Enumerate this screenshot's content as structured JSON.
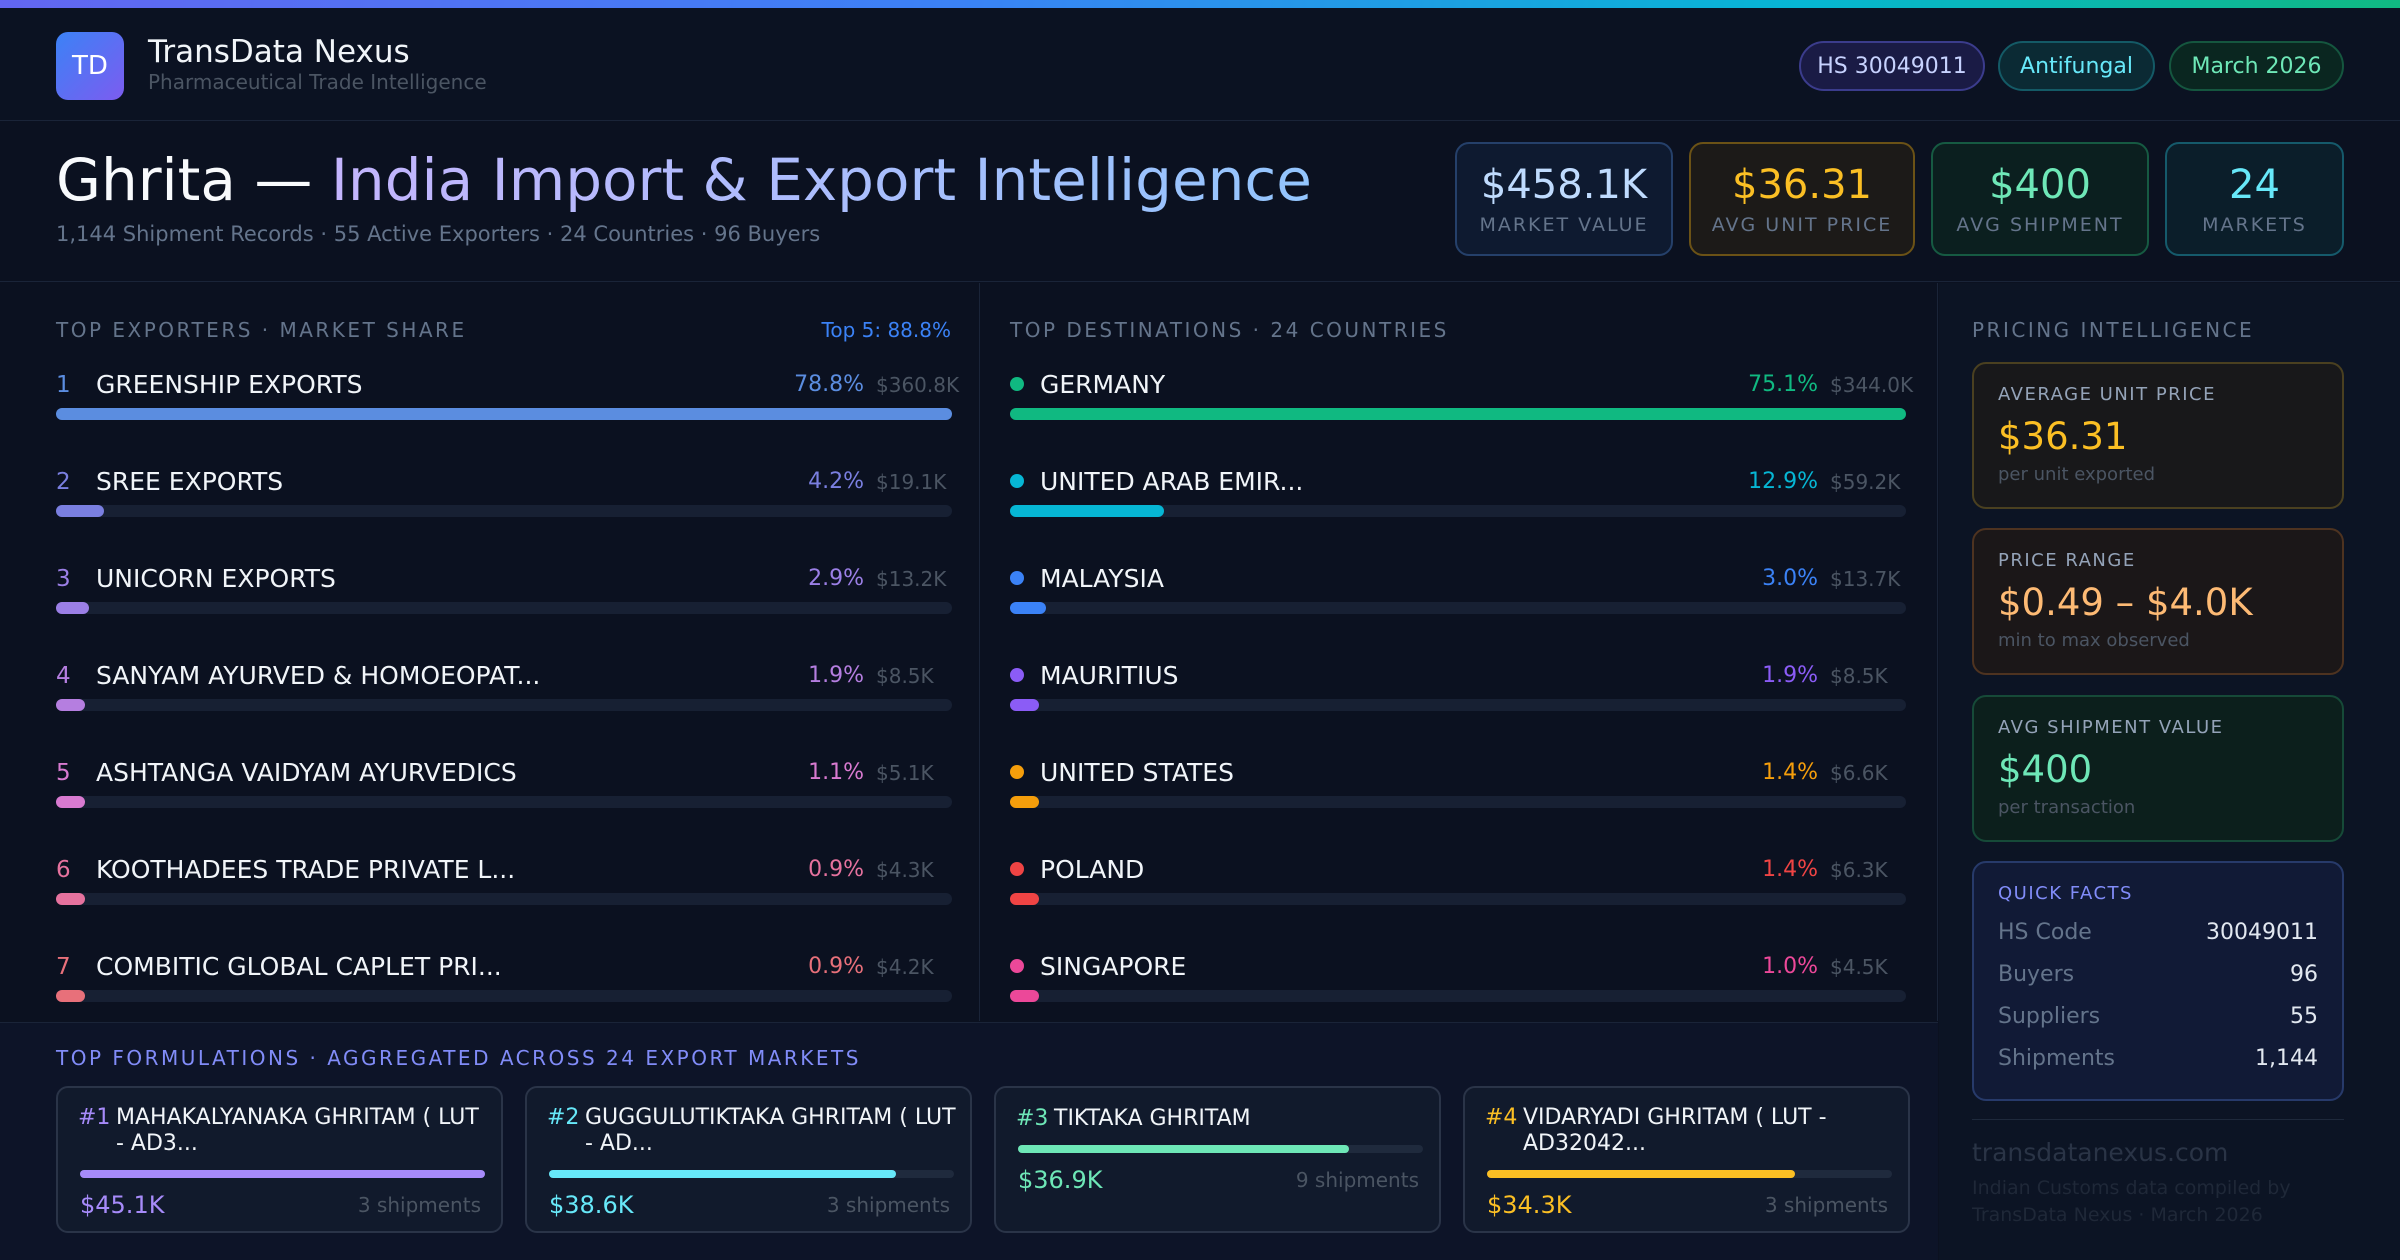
{
  "header": {
    "logo_text": "TD",
    "brand_title": "TransData Nexus",
    "brand_subtitle": "Pharmaceutical Trade Intelligence",
    "pills": [
      "HS 30049011",
      "Antifungal",
      "March 2026"
    ]
  },
  "title": {
    "product": "Ghrita",
    "separator": " — ",
    "rest": "India Import & Export Intelligence",
    "subtitle": "1,144 Shipment Records · 55 Active Exporters · 24 Countries · 96 Buyers"
  },
  "kpis": [
    {
      "value": "$458.1K",
      "label": "MARKET VALUE"
    },
    {
      "value": "$36.31",
      "label": "AVG UNIT PRICE"
    },
    {
      "value": "$400",
      "label": "AVG SHIPMENT"
    },
    {
      "value": "24",
      "label": "MARKETS"
    }
  ],
  "exporters": {
    "label": "TOP EXPORTERS · MARKET SHARE",
    "top5": "Top 5: 88.8%",
    "items": [
      {
        "rank": "1",
        "name": "GREENSHIP EXPORTS",
        "pct": "78.8%",
        "amount": "$360.8K",
        "share": 78.8,
        "color": "#5b8de0"
      },
      {
        "rank": "2",
        "name": "SREE EXPORTS",
        "pct": "4.2%",
        "amount": "$19.1K",
        "share": 4.2,
        "color": "#7a7fe0"
      },
      {
        "rank": "3",
        "name": "UNICORN EXPORTS",
        "pct": "2.9%",
        "amount": "$13.2K",
        "share": 2.9,
        "color": "#9b7fe6"
      },
      {
        "rank": "4",
        "name": "SANYAM AYURVED & HOMOEOPAT...",
        "pct": "1.9%",
        "amount": "$8.5K",
        "share": 1.9,
        "color": "#b57ee0"
      },
      {
        "rank": "5",
        "name": "ASHTANGA VAIDYAM AYURVEDICS",
        "pct": "1.1%",
        "amount": "$5.1K",
        "share": 1.1,
        "color": "#d87ad0"
      },
      {
        "rank": "6",
        "name": "KOOTHADEES TRADE PRIVATE L...",
        "pct": "0.9%",
        "amount": "$4.3K",
        "share": 0.9,
        "color": "#e6729e"
      },
      {
        "rank": "7",
        "name": "COMBITIC GLOBAL CAPLET PRI...",
        "pct": "0.9%",
        "amount": "$4.2K",
        "share": 0.9,
        "color": "#e8707a"
      }
    ]
  },
  "destinations": {
    "label": "TOP DESTINATIONS · 24 COUNTRIES",
    "items": [
      {
        "name": "GERMANY",
        "pct": "75.1%",
        "amount": "$344.0K",
        "share": 75.1,
        "color": "#10b981"
      },
      {
        "name": "UNITED ARAB EMIR...",
        "pct": "12.9%",
        "amount": "$59.2K",
        "share": 12.9,
        "color": "#06b6d4"
      },
      {
        "name": "MALAYSIA",
        "pct": "3.0%",
        "amount": "$13.7K",
        "share": 3.0,
        "color": "#3b82f6"
      },
      {
        "name": "MAURITIUS",
        "pct": "1.9%",
        "amount": "$8.5K",
        "share": 1.9,
        "color": "#8b5cf6"
      },
      {
        "name": "UNITED STATES",
        "pct": "1.4%",
        "amount": "$6.6K",
        "share": 1.4,
        "color": "#f59e0b"
      },
      {
        "name": "POLAND",
        "pct": "1.4%",
        "amount": "$6.3K",
        "share": 1.4,
        "color": "#ef4444"
      },
      {
        "name": "SINGAPORE",
        "pct": "1.0%",
        "amount": "$4.5K",
        "share": 1.0,
        "color": "#ec4899"
      }
    ]
  },
  "pricing": {
    "label": "PRICING INTELLIGENCE",
    "cards": [
      {
        "label": "AVERAGE UNIT PRICE",
        "value": "$36.31",
        "sub": "per unit exported"
      },
      {
        "label": "PRICE RANGE",
        "value": "$0.49 – $4.0K",
        "sub": "min to max observed"
      },
      {
        "label": "AVG SHIPMENT VALUE",
        "value": "$400",
        "sub": "per transaction"
      }
    ],
    "quick_facts": {
      "label": "QUICK FACTS",
      "rows": [
        {
          "k": "HS Code",
          "v": "30049011"
        },
        {
          "k": "Buyers",
          "v": "96"
        },
        {
          "k": "Suppliers",
          "v": "55"
        },
        {
          "k": "Shipments",
          "v": "1,144"
        }
      ]
    },
    "site": "transdatanexus.com",
    "credit": "Indian Customs data compiled by TransData Nexus · March 2026"
  },
  "formulations": {
    "label": "TOP FORMULATIONS · AGGREGATED ACROSS 24 EXPORT MARKETS",
    "items": [
      {
        "rank": "#1",
        "name": "MAHAKALYANAKA GHRITAM ( LUT - AD3...",
        "value": "$45.1K",
        "shipments": "3 shipments",
        "share": 100,
        "color": "#a78bfa"
      },
      {
        "rank": "#2",
        "name": "GUGGULUTIKTAKA GHRITAM ( LUT - AD...",
        "value": "$38.6K",
        "shipments": "3 shipments",
        "share": 85.6,
        "color": "#67e8f9"
      },
      {
        "rank": "#3",
        "name": "TIKTAKA GHRITAM",
        "value": "$36.9K",
        "shipments": "9 shipments",
        "share": 81.8,
        "color": "#6ee7b7"
      },
      {
        "rank": "#4",
        "name": "VIDARYADI GHRITAM ( LUT - AD32042...",
        "value": "$34.3K",
        "shipments": "3 shipments",
        "share": 76.1,
        "color": "#fbbf24"
      }
    ]
  },
  "colors": {
    "accent": "#3b82f6",
    "background": "#0b1120",
    "gold": "#fbbf24",
    "green": "#6ee7b7",
    "cyan": "#67e8f9"
  }
}
